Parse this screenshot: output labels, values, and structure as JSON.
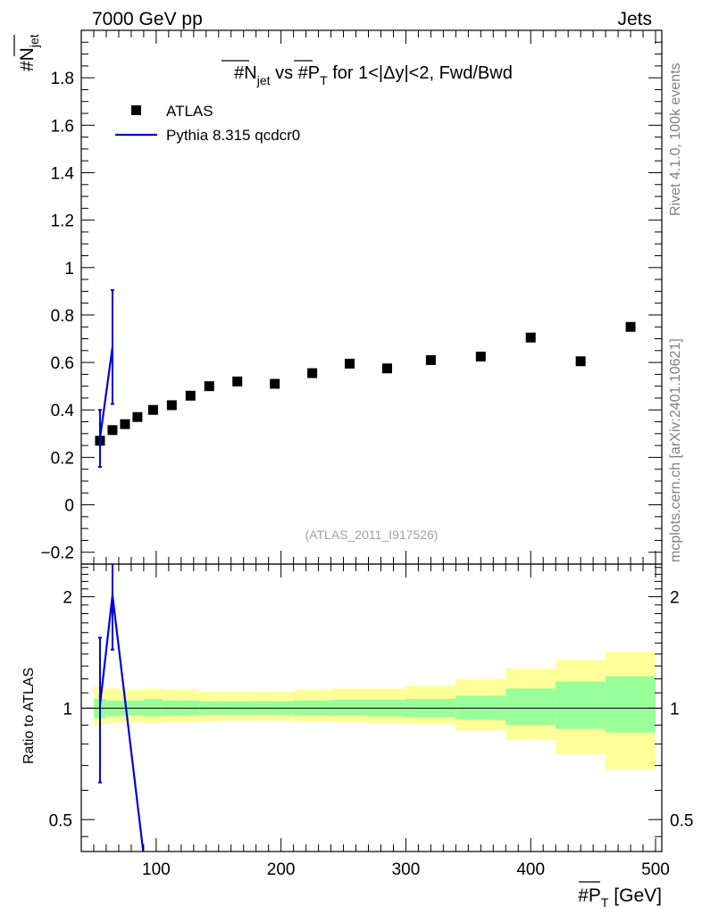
{
  "header": {
    "left": "7000 GeV pp",
    "right": "Jets"
  },
  "side_labels": {
    "rivet": "Rivet 4.1.0,  100k events",
    "mcplots": "mcplots.cern.ch [arXiv:2401.10621]"
  },
  "watermark": "(ATLAS_2011_I917526)",
  "colors": {
    "data": "#000000",
    "mc": "#0000dd",
    "band_inner": "#99ff99",
    "band_outer": "#ffff99"
  },
  "chart_data": [
    {
      "type": "scatter",
      "title": "#N_jet vs #P_T for 1<|Δy|<2, Fwd/Bwd",
      "title_parts": {
        "a": "#",
        "b": "N",
        "c": "jet",
        "d": " vs #",
        "e": "P",
        "f": "T",
        "g": " for 1<|Δy|<2, Fwd/Bwd"
      },
      "ylabel": "#N_jet",
      "ylabel_parts": {
        "a": "#",
        "b": "N",
        "c": "jet"
      },
      "xlim": [
        40,
        505
      ],
      "ylim": [
        -0.25,
        2.0
      ],
      "yticks": [
        -0.2,
        0,
        0.2,
        0.4,
        0.6,
        0.8,
        1,
        1.2,
        1.4,
        1.6,
        1.8
      ],
      "ytick_labels": [
        "−0.2",
        "0",
        "0.2",
        "0.4",
        "0.6",
        "0.8",
        "1",
        "1.2",
        "1.4",
        "1.6",
        "1.8"
      ],
      "legend": [
        {
          "label": "ATLAS",
          "marker": "square"
        },
        {
          "label": "Pythia 8.315 qcdcr0",
          "marker": "line"
        }
      ],
      "series": [
        {
          "name": "ATLAS",
          "x": [
            55,
            65,
            75,
            85,
            97.5,
            112.5,
            127.5,
            142.5,
            165,
            195,
            225,
            255,
            285,
            320,
            360,
            400,
            440,
            480
          ],
          "xerr": [
            5,
            5,
            5,
            5,
            7.5,
            7.5,
            7.5,
            7.5,
            15,
            15,
            15,
            15,
            15,
            20,
            20,
            20,
            20,
            20
          ],
          "y": [
            0.27,
            0.315,
            0.34,
            0.37,
            0.4,
            0.42,
            0.46,
            0.5,
            0.52,
            0.51,
            0.555,
            0.595,
            0.575,
            0.61,
            0.625,
            0.705,
            0.605,
            0.75
          ]
        },
        {
          "name": "Pythia 8.315 qcdcr0",
          "x": [
            55,
            65
          ],
          "y": [
            0.28,
            0.665
          ],
          "yerr": [
            0.12,
            0.24
          ]
        }
      ]
    },
    {
      "type": "line",
      "ylabel": "Ratio to ATLAS",
      "xlabel": "#P_T [GeV]",
      "xlabel_parts": {
        "a": "#",
        "b": "P",
        "c": "T",
        "d": " [GeV]"
      },
      "xlim": [
        40,
        505
      ],
      "ylim": [
        0.41,
        2.45
      ],
      "scale": "log",
      "xticks": [
        100,
        200,
        300,
        400,
        500
      ],
      "xtick_labels": [
        "100",
        "200",
        "300",
        "400",
        "500"
      ],
      "yticks": [
        0.5,
        1,
        2
      ],
      "ytick_labels": [
        "0.5",
        "1",
        "2"
      ],
      "band": {
        "x_low": [
          50,
          60,
          70,
          80,
          90,
          105,
          120,
          135,
          150,
          180,
          210,
          240,
          270,
          300,
          340,
          380,
          420,
          460
        ],
        "x_high": [
          60,
          70,
          80,
          90,
          105,
          120,
          135,
          150,
          180,
          210,
          240,
          270,
          300,
          340,
          380,
          420,
          460,
          500
        ],
        "inner_lo": [
          0.94,
          0.95,
          0.955,
          0.955,
          0.95,
          0.955,
          0.955,
          0.96,
          0.96,
          0.96,
          0.955,
          0.955,
          0.95,
          0.945,
          0.93,
          0.9,
          0.88,
          0.86
        ],
        "inner_hi": [
          1.06,
          1.05,
          1.05,
          1.05,
          1.06,
          1.05,
          1.05,
          1.045,
          1.045,
          1.045,
          1.05,
          1.055,
          1.055,
          1.06,
          1.08,
          1.13,
          1.18,
          1.22
        ],
        "outer_lo": [
          0.9,
          0.91,
          0.915,
          0.915,
          0.91,
          0.915,
          0.915,
          0.92,
          0.925,
          0.925,
          0.92,
          0.915,
          0.91,
          0.905,
          0.87,
          0.82,
          0.75,
          0.68
        ],
        "outer_hi": [
          1.15,
          1.13,
          1.12,
          1.12,
          1.13,
          1.12,
          1.12,
          1.11,
          1.11,
          1.11,
          1.12,
          1.13,
          1.13,
          1.15,
          1.2,
          1.28,
          1.35,
          1.42
        ]
      },
      "series": [
        {
          "name": "Pythia 8.315 qcdcr0",
          "x": [
            55,
            65,
            90
          ],
          "y": [
            1.02,
            2.02,
            0.4
          ],
          "err_x": [
            55,
            65
          ],
          "err_lo": [
            0.63,
            1.44
          ],
          "err_hi": [
            1.55,
            2.45
          ]
        }
      ]
    }
  ]
}
